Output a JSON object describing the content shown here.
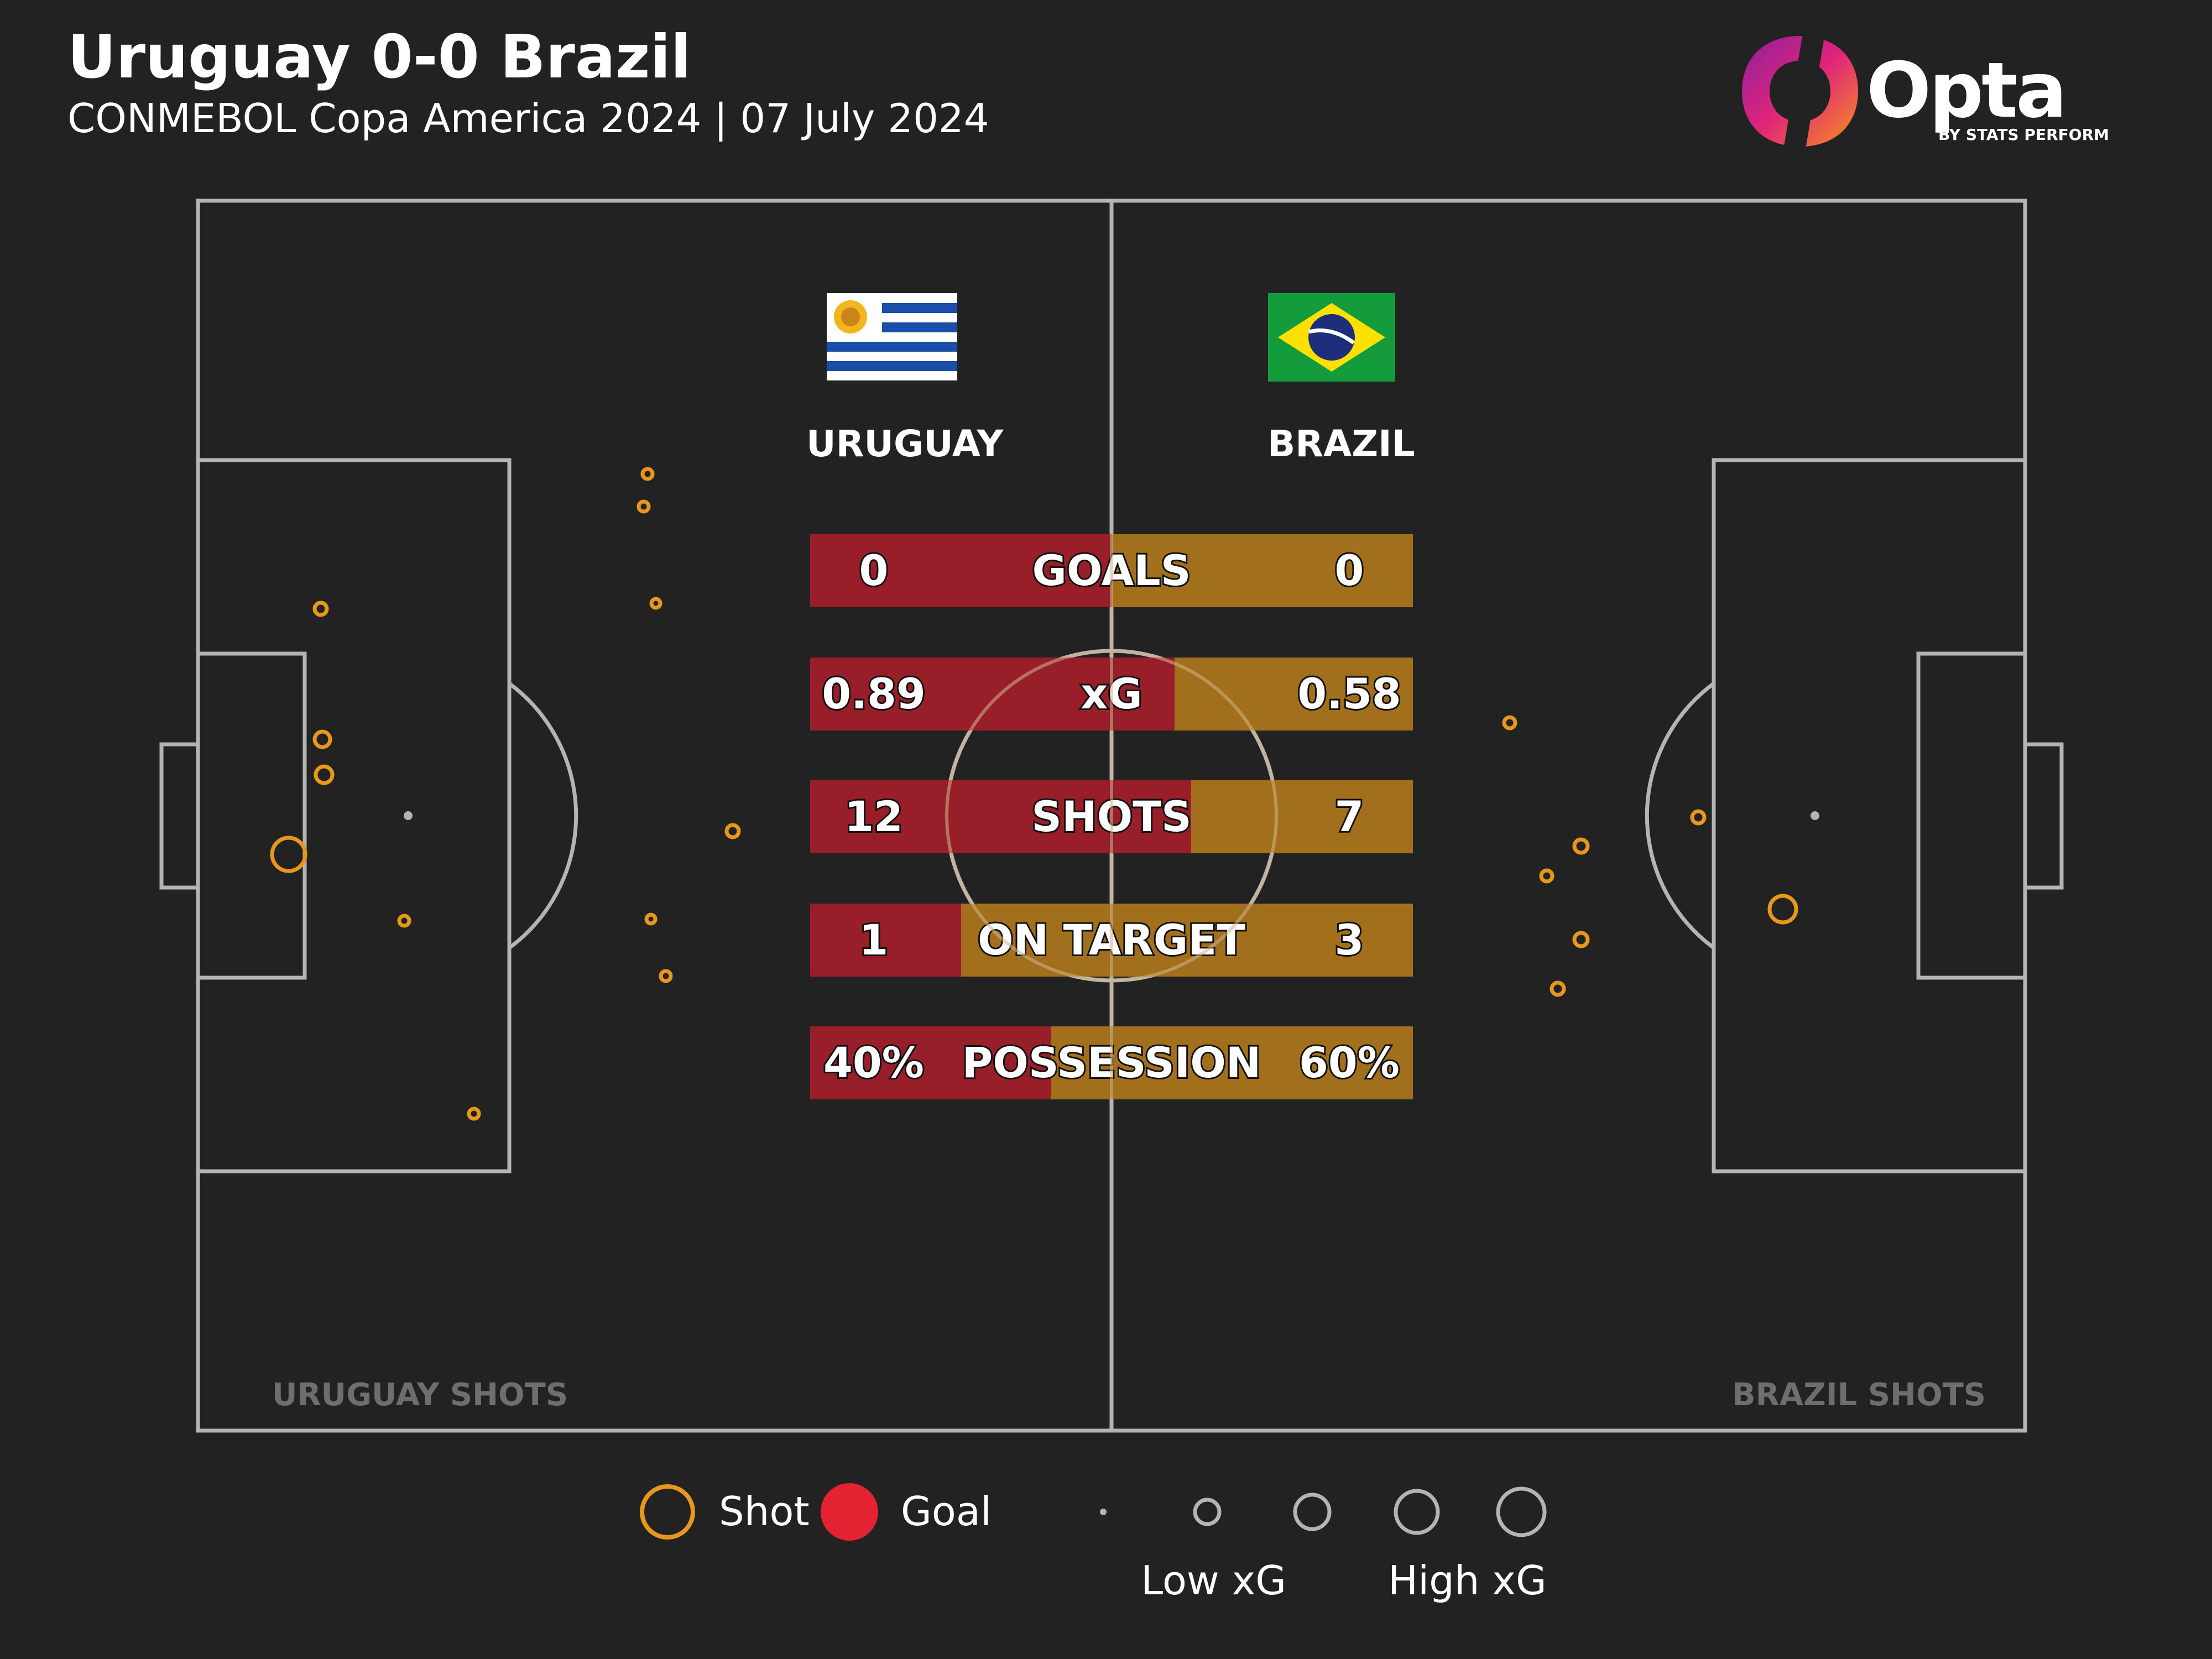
{
  "header": {
    "title": "Uruguay 0-0 Brazil",
    "subtitle": "CONMEBOL Copa America 2024 | 07 July 2024"
  },
  "logo": {
    "name": "Opta",
    "sub": "BY STATS PERFORM"
  },
  "colors": {
    "background": "#222222",
    "pitch_lines": "#b4b4b4",
    "uruguay": "#981f2a",
    "brazil": "#a2701d",
    "shot": "#e7981c",
    "goal": "#e32232"
  },
  "teams": {
    "home": {
      "name": "URUGUAY",
      "flag": "uruguay-flag"
    },
    "away": {
      "name": "BRAZIL",
      "flag": "brazil-flag"
    }
  },
  "shots_labels": {
    "home": "URUGUAY SHOTS",
    "away": "BRAZIL SHOTS"
  },
  "legend": {
    "shot": "Shot",
    "goal": "Goal",
    "low_xg": "Low xG",
    "high_xg": "High xG"
  },
  "chart_data": {
    "type": "table",
    "stats": [
      {
        "label": "GOALS",
        "home": "0",
        "away": "0",
        "home_share": 0.5
      },
      {
        "label": "xG",
        "home": "0.89",
        "away": "0.58",
        "home_share": 0.605
      },
      {
        "label": "SHOTS",
        "home": "12",
        "away": "7",
        "home_share": 0.632
      },
      {
        "label": "ON TARGET",
        "home": "1",
        "away": "3",
        "home_share": 0.25
      },
      {
        "label": "POSSESSION",
        "home": "40%",
        "away": "60%",
        "home_share": 0.4
      }
    ]
  }
}
